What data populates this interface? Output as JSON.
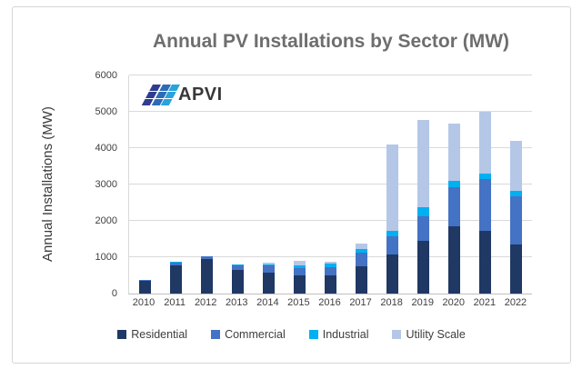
{
  "logo": {
    "text": "APVI",
    "stripe_colors": [
      "#2F3C8F",
      "#2B6CB8",
      "#29A3DC"
    ]
  },
  "colors": {
    "grid": "#D9D9D9",
    "axis": "#BFBFBF",
    "title_text": "#6E6E6E",
    "label_text": "#404040",
    "frame_border": "#D6D6D6"
  },
  "chart_data": {
    "type": "bar",
    "stacked": true,
    "title": "Annual PV Installations by Sector (MW)",
    "xlabel": "",
    "ylabel": "Annual Installations (MW)",
    "categories": [
      "2010",
      "2011",
      "2012",
      "2013",
      "2014",
      "2015",
      "2016",
      "2017",
      "2018",
      "2019",
      "2020",
      "2021",
      "2022"
    ],
    "series": [
      {
        "name": "Residential",
        "color": "#1F3864",
        "values": [
          350,
          780,
          950,
          650,
          580,
          510,
          510,
          740,
          1070,
          1440,
          1860,
          1720,
          1360
        ]
      },
      {
        "name": "Commercial",
        "color": "#4472C4",
        "values": [
          30,
          60,
          80,
          120,
          190,
          190,
          225,
          390,
          510,
          690,
          1060,
          1430,
          1320
        ]
      },
      {
        "name": "Industrial",
        "color": "#00B0F0",
        "values": [
          0,
          20,
          0,
          20,
          40,
          80,
          90,
          85,
          155,
          235,
          190,
          150,
          135
        ]
      },
      {
        "name": "Utility Scale",
        "color": "#B4C7E7",
        "values": [
          0,
          0,
          0,
          0,
          30,
          120,
          45,
          165,
          2365,
          2415,
          1570,
          1700,
          1385
        ]
      }
    ],
    "totals": [
      380,
      860,
      1030,
      790,
      840,
      900,
      870,
      1380,
      4100,
      4780,
      4680,
      5000,
      4200
    ],
    "ylim": [
      0,
      6000
    ],
    "ytick_step": 1000,
    "grid": "horizontal",
    "legend_position": "bottom"
  }
}
